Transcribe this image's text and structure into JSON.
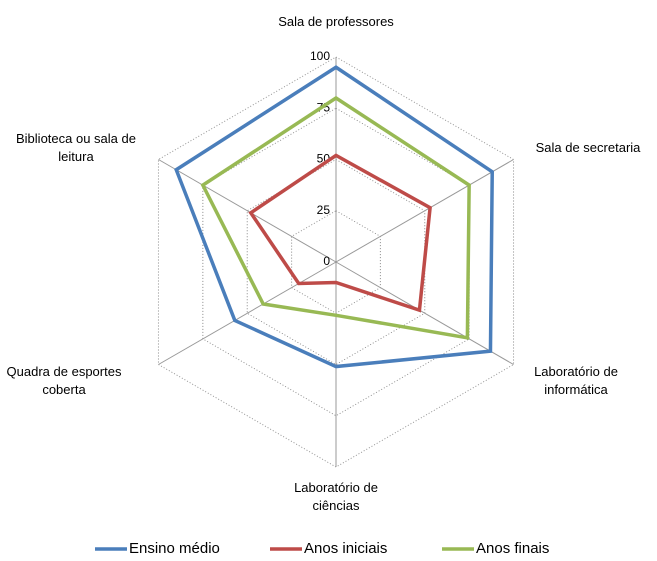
{
  "chart_data": {
    "type": "radar",
    "categories": [
      "Sala de professores",
      "Sala de secretaria",
      "Laboratório de informática",
      "Laboratório de ciências",
      "Quadra de esportes coberta",
      "Biblioteca ou sala de leitura"
    ],
    "series": [
      {
        "name": "Ensino médio",
        "color": "#4a7ebb",
        "values": [
          95,
          88,
          87,
          51,
          57,
          90
        ]
      },
      {
        "name": "Anos iniciais",
        "color": "#be4b48",
        "values": [
          52,
          53,
          47,
          10,
          21,
          48
        ]
      },
      {
        "name": "Anos finais",
        "color": "#98b954",
        "values": [
          80,
          75,
          74,
          26,
          41,
          75
        ]
      }
    ],
    "ylim": [
      0,
      100
    ],
    "yticks": [
      0,
      25,
      50,
      75,
      100
    ],
    "grid": true
  }
}
